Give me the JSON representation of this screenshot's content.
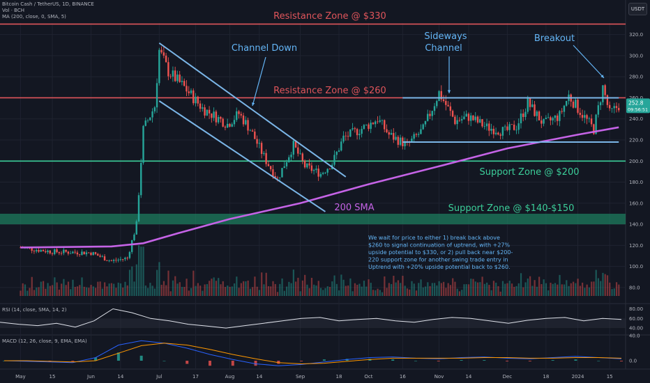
{
  "header": {
    "symbol": "Bitcoin Cash / TetherUS, 1D, BINANCE",
    "volume_label": "Vol · BCH",
    "ma_label": "MA (200, close, 0, SMA, 5)",
    "rsi_label": "RSI (14, close, SMA, 14, 2)",
    "macd_label": "MACD (12, 26, close, 9, EMA, EMA)",
    "currency": "USDT"
  },
  "colors": {
    "background": "#131722",
    "grid": "#1f2330",
    "up": "#26a69a",
    "down": "#ef5350",
    "resistance": "#e0555b",
    "support": "#3ccf9a",
    "channel": "#7bb6e8",
    "sma": "#c563e6",
    "annotation": "#64b5f6"
  },
  "chart_data": {
    "type": "candlestick",
    "title": "Bitcoin Cash / TetherUS, 1D, BINANCE",
    "price_axis": {
      "ticks": [
        80.0,
        100.0,
        120.0,
        140.0,
        160.0,
        180.0,
        200.0,
        220.0,
        240.0,
        260.0,
        280.0,
        300.0,
        320.0
      ],
      "range": [
        72,
        331
      ]
    },
    "time_axis": {
      "ticks": [
        "May",
        "15",
        "Jun",
        "14",
        "Jul",
        "17",
        "Aug",
        "14",
        "Sep",
        "18",
        "Oct",
        "16",
        "Nov",
        "14",
        "Dec",
        "18",
        "2024",
        "15"
      ]
    },
    "last_price": "252.8",
    "countdown": "09:56:51",
    "price_points": [
      {
        "date": "2023-05-01",
        "price": 118
      },
      {
        "date": "2023-05-15",
        "price": 114
      },
      {
        "date": "2023-06-01",
        "price": 113
      },
      {
        "date": "2023-06-10",
        "price": 105
      },
      {
        "date": "2023-06-17",
        "price": 108
      },
      {
        "date": "2023-06-21",
        "price": 140
      },
      {
        "date": "2023-06-24",
        "price": 230
      },
      {
        "date": "2023-06-29",
        "price": 252
      },
      {
        "date": "2023-07-01",
        "price": 305
      },
      {
        "date": "2023-07-05",
        "price": 285
      },
      {
        "date": "2023-07-12",
        "price": 270
      },
      {
        "date": "2023-07-20",
        "price": 250
      },
      {
        "date": "2023-07-31",
        "price": 235
      },
      {
        "date": "2023-08-05",
        "price": 245
      },
      {
        "date": "2023-08-10",
        "price": 230
      },
      {
        "date": "2023-08-17",
        "price": 200
      },
      {
        "date": "2023-08-22",
        "price": 183
      },
      {
        "date": "2023-08-29",
        "price": 215
      },
      {
        "date": "2023-09-03",
        "price": 195
      },
      {
        "date": "2023-09-10",
        "price": 188
      },
      {
        "date": "2023-09-15",
        "price": 198
      },
      {
        "date": "2023-09-20",
        "price": 222
      },
      {
        "date": "2023-09-30",
        "price": 233
      },
      {
        "date": "2023-10-05",
        "price": 240
      },
      {
        "date": "2023-10-10",
        "price": 225
      },
      {
        "date": "2023-10-18",
        "price": 215
      },
      {
        "date": "2023-10-25",
        "price": 230
      },
      {
        "date": "2023-11-01",
        "price": 265
      },
      {
        "date": "2023-11-08",
        "price": 238
      },
      {
        "date": "2023-11-14",
        "price": 242
      },
      {
        "date": "2023-11-22",
        "price": 232
      },
      {
        "date": "2023-11-30",
        "price": 228
      },
      {
        "date": "2023-12-05",
        "price": 233
      },
      {
        "date": "2023-12-10",
        "price": 255
      },
      {
        "date": "2023-12-17",
        "price": 235
      },
      {
        "date": "2023-12-24",
        "price": 243
      },
      {
        "date": "2023-12-28",
        "price": 262
      },
      {
        "date": "2024-01-01",
        "price": 250
      },
      {
        "date": "2024-01-08",
        "price": 230
      },
      {
        "date": "2024-01-12",
        "price": 270
      },
      {
        "date": "2024-01-15",
        "price": 245
      },
      {
        "date": "2024-01-19",
        "price": 252.8
      }
    ],
    "sma_200": [
      {
        "date": "2023-05-01",
        "price": 118
      },
      {
        "date": "2023-06-10",
        "price": 119
      },
      {
        "date": "2023-06-24",
        "price": 122
      },
      {
        "date": "2023-07-10",
        "price": 132
      },
      {
        "date": "2023-08-01",
        "price": 145
      },
      {
        "date": "2023-09-01",
        "price": 160
      },
      {
        "date": "2023-10-01",
        "price": 178
      },
      {
        "date": "2023-11-01",
        "price": 195
      },
      {
        "date": "2023-12-01",
        "price": 212
      },
      {
        "date": "2024-01-01",
        "price": 225
      },
      {
        "date": "2024-01-19",
        "price": 232
      }
    ],
    "channel_down": {
      "upper": [
        {
          "date": "2023-07-01",
          "price": 312
        },
        {
          "date": "2023-09-21",
          "price": 185
        }
      ],
      "lower": [
        {
          "date": "2023-07-01",
          "price": 257
        },
        {
          "date": "2023-09-12",
          "price": 152
        }
      ]
    },
    "sideways_channel": {
      "top": 260,
      "bottom": 218,
      "start": "2023-10-16",
      "end": "2024-01-19"
    },
    "zones": [
      {
        "label": "Resistance Zone @ $330",
        "price": 330,
        "kind": "resistance"
      },
      {
        "label": "Resistance Zone @ $260",
        "price": 260,
        "kind": "resistance"
      },
      {
        "label": "Support Zone @ $200",
        "price": 200,
        "kind": "support"
      },
      {
        "label": "Support Zone @ $140-$150",
        "low": 140,
        "high": 150,
        "kind": "support-band"
      }
    ],
    "annotations": {
      "channel_down": "Channel Down",
      "sideways_line1": "Sideways",
      "sideways_line2": "Channel",
      "breakout": "Breakout",
      "sma_label": "200 SMA",
      "note_lines": [
        "We wait for price to either 1) break back above",
        "$260 to signal continuation of uptrend, with +27%",
        "upside potential to $330, or 2) pull back near $200-",
        "220 support zone for another swing trade entry in",
        "Uptrend with +20% upside potential back to $260."
      ]
    },
    "rsi": {
      "ticks": [
        80.0,
        60.0,
        40.0
      ],
      "values": [
        52,
        48,
        45,
        50,
        42,
        55,
        80,
        72,
        60,
        55,
        48,
        44,
        40,
        45,
        50,
        55,
        60,
        62,
        55,
        58,
        60,
        55,
        52,
        58,
        62,
        60,
        55,
        50,
        56,
        60,
        62,
        55,
        60,
        58
      ]
    },
    "macd": {
      "ticks": [
        40.0,
        0.0
      ],
      "macd": [
        0,
        -1,
        -2,
        -3,
        5,
        25,
        32,
        28,
        20,
        10,
        2,
        -5,
        -8,
        -6,
        -2,
        2,
        5,
        6,
        4,
        3,
        5,
        6,
        4,
        3,
        5,
        7,
        5,
        3
      ],
      "signal": [
        0,
        0,
        -1,
        -2,
        0,
        12,
        24,
        28,
        25,
        18,
        10,
        3,
        -3,
        -5,
        -4,
        -1,
        2,
        4,
        4,
        4,
        4,
        5,
        5,
        4,
        4,
        5,
        5,
        4
      ]
    }
  }
}
